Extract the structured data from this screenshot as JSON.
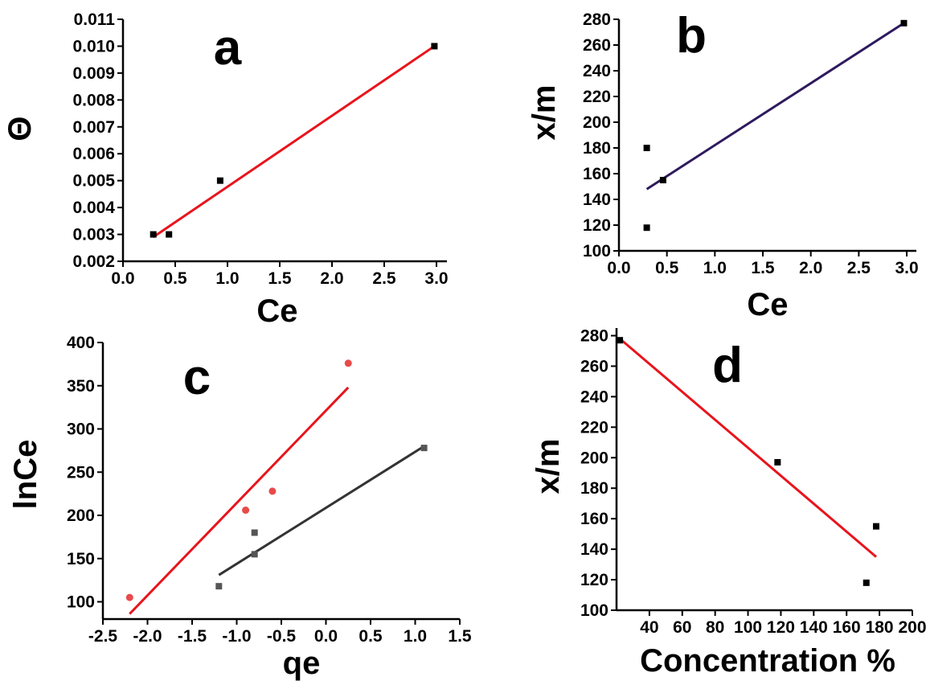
{
  "chart_data": [
    {
      "panel": "a",
      "type": "scatter",
      "xlabel": "Ce",
      "ylabel": "Θ",
      "xlim": [
        0.0,
        3.1
      ],
      "ylim": [
        0.002,
        0.011
      ],
      "xticks": [
        "0.0",
        "0.5",
        "1.0",
        "1.5",
        "2.0",
        "2.5",
        "3.0"
      ],
      "yticks": [
        "0.002",
        "0.003",
        "0.004",
        "0.005",
        "0.006",
        "0.007",
        "0.008",
        "0.009",
        "0.010",
        "0.011"
      ],
      "series": [
        {
          "points": [
            [
              0.29,
              0.003
            ],
            [
              0.44,
              0.003
            ],
            [
              0.93,
              0.005
            ],
            [
              2.98,
              0.01
            ]
          ],
          "color": "#000000",
          "marker": "square"
        }
      ],
      "fits": [
        {
          "x": [
            0.29,
            2.98
          ],
          "y": [
            0.0029,
            0.01
          ],
          "color": "#e8141c"
        }
      ]
    },
    {
      "panel": "b",
      "type": "scatter",
      "xlabel": "Ce",
      "ylabel": "x/m",
      "xlim": [
        0.0,
        3.1
      ],
      "ylim": [
        100,
        280
      ],
      "xticks": [
        "0.0",
        "0.5",
        "1.0",
        "1.5",
        "2.0",
        "2.5",
        "3.0"
      ],
      "yticks": [
        "100",
        "120",
        "140",
        "160",
        "180",
        "200",
        "220",
        "240",
        "260",
        "280"
      ],
      "series": [
        {
          "points": [
            [
              0.29,
              180
            ],
            [
              0.29,
              118
            ],
            [
              0.46,
              155
            ],
            [
              2.97,
              277
            ]
          ],
          "color": "#000000",
          "marker": "square"
        }
      ],
      "fits": [
        {
          "x": [
            0.29,
            2.97
          ],
          "y": [
            148,
            277
          ],
          "color": "#2e1a5e"
        }
      ]
    },
    {
      "panel": "c",
      "type": "scatter",
      "xlabel": "qe",
      "ylabel": "lnCe",
      "xlim": [
        -2.5,
        1.5
      ],
      "ylim": [
        80,
        400
      ],
      "xticks": [
        "-2.5",
        "-2.0",
        "-1.5",
        "-1.0",
        "-0.5",
        "0.0",
        "0.5",
        "1.0",
        "1.5"
      ],
      "yticks": [
        "100",
        "150",
        "200",
        "250",
        "300",
        "350",
        "400"
      ],
      "series": [
        {
          "points": [
            [
              -2.2,
              105
            ],
            [
              -0.9,
              206
            ],
            [
              -0.6,
              228
            ],
            [
              0.25,
              376
            ]
          ],
          "color": "#e84a4a",
          "marker": "circle"
        },
        {
          "points": [
            [
              -1.2,
              118
            ],
            [
              -0.8,
              180
            ],
            [
              -0.8,
              155
            ],
            [
              1.1,
              278
            ]
          ],
          "color": "#555555",
          "marker": "square"
        }
      ],
      "fits": [
        {
          "x": [
            -2.2,
            0.25
          ],
          "y": [
            86,
            348
          ],
          "color": "#e8141c"
        },
        {
          "x": [
            -1.2,
            1.1
          ],
          "y": [
            131,
            280
          ],
          "color": "#333333"
        }
      ]
    },
    {
      "panel": "d",
      "type": "scatter",
      "xlabel": "Concentration %",
      "ylabel": "x/m",
      "xlim": [
        20,
        200
      ],
      "ylim": [
        100,
        285
      ],
      "xticks": [
        "40",
        "60",
        "80",
        "100",
        "120",
        "140",
        "160",
        "180",
        "200"
      ],
      "yticks": [
        "100",
        "120",
        "140",
        "160",
        "180",
        "200",
        "220",
        "240",
        "260",
        "280"
      ],
      "series": [
        {
          "points": [
            [
              22,
              277
            ],
            [
              118,
              197
            ],
            [
              172,
              118
            ],
            [
              178,
              155
            ]
          ],
          "color": "#000000",
          "marker": "square"
        }
      ],
      "fits": [
        {
          "x": [
            22,
            178
          ],
          "y": [
            278,
            135
          ],
          "color": "#e8141c"
        }
      ]
    }
  ]
}
